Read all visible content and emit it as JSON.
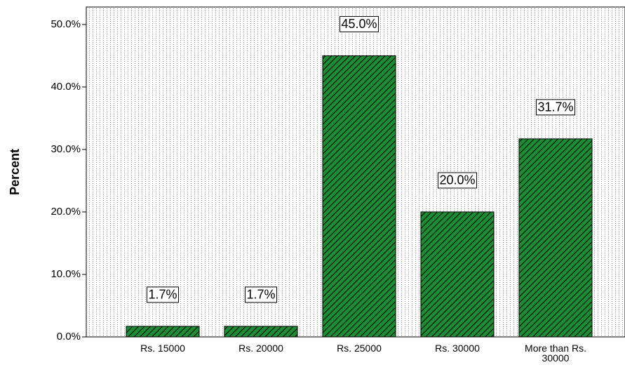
{
  "chart_data": {
    "type": "bar",
    "y_label": "Percent",
    "categories": [
      "Rs. 15000",
      "Rs. 20000",
      "Rs. 25000",
      "Rs. 30000",
      "More than Rs. 30000"
    ],
    "values": [
      1.7,
      1.7,
      45.0,
      20.0,
      31.7
    ],
    "value_labels": [
      "1.7%",
      "1.7%",
      "45.0%",
      "20.0%",
      "31.7%"
    ],
    "color": "#1e8c32",
    "ylim": [
      0,
      52.8
    ],
    "yticks": [
      {
        "value": 0,
        "label": "0.0%"
      },
      {
        "value": 10,
        "label": "10.0%"
      },
      {
        "value": 20,
        "label": "20.0%"
      },
      {
        "value": 30,
        "label": "30.0%"
      },
      {
        "value": 40,
        "label": "40.0%"
      },
      {
        "value": 50,
        "label": "50.0%"
      }
    ]
  }
}
